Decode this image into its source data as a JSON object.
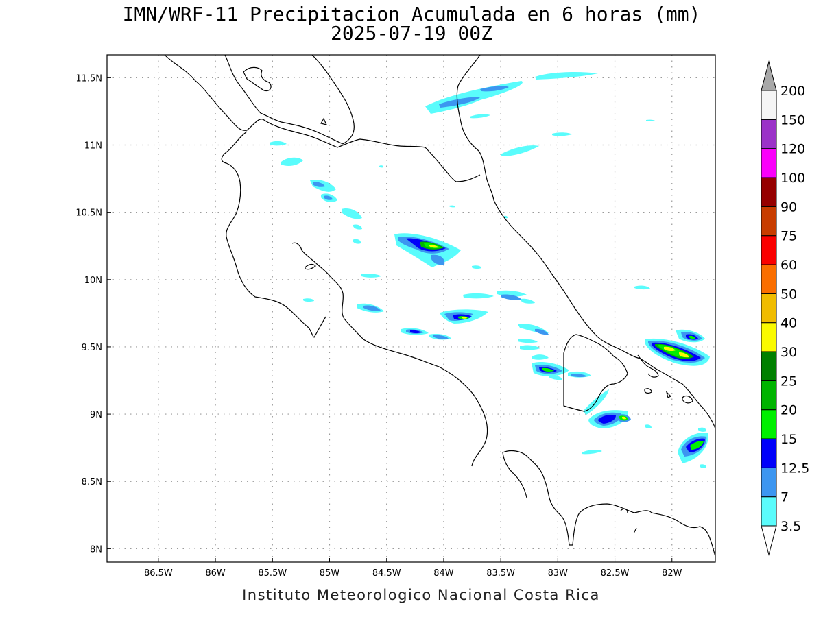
{
  "title": {
    "line1": "IMN/WRF-11 Precipitacion Acumulada en 6 horas (mm)",
    "line2": "2025-07-19 00Z"
  },
  "footer": "Instituto Meteorologico Nacional Costa Rica",
  "axes": {
    "lon_ticks": [
      "86.5W",
      "86W",
      "85.5W",
      "85W",
      "84.5W",
      "84W",
      "83.5W",
      "83W",
      "82.5W",
      "82W"
    ],
    "lon_values": [
      -86.5,
      -86,
      -85.5,
      -85,
      -84.5,
      -84,
      -83.5,
      -83,
      -82.5,
      -82
    ],
    "lat_ticks": [
      "11.5N",
      "11N",
      "10.5N",
      "10N",
      "9.5N",
      "9N",
      "8.5N",
      "8N"
    ],
    "lat_values": [
      11.5,
      11,
      10.5,
      10,
      9.5,
      9,
      8.5,
      8
    ],
    "lon_range": [
      -86.95,
      -81.62
    ],
    "lat_range": [
      7.9,
      11.67
    ],
    "grid": "dotted"
  },
  "colorbar": {
    "labels": [
      "3.5",
      "7",
      "12.5",
      "15",
      "20",
      "25",
      "30",
      "40",
      "50",
      "60",
      "75",
      "90",
      "100",
      "120",
      "150",
      "200"
    ],
    "colors": [
      "#5afcfc",
      "#3c96f0",
      "#0000fa",
      "#00f000",
      "#00b400",
      "#008000",
      "#fafa00",
      "#f0bc00",
      "#fa6e00",
      "#fa0000",
      "#c83c00",
      "#960000",
      "#fa00fa",
      "#9b32c8",
      "#f5f5f5"
    ],
    "top_arrow_color": "#a8a8a8",
    "bottom_arrow_color": "#ffffff"
  }
}
